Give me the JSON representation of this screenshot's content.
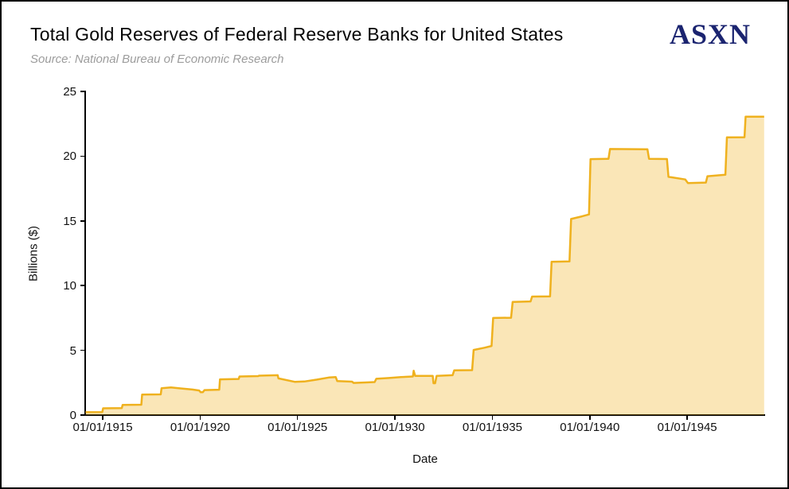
{
  "page": {
    "logo": "ASXN"
  },
  "colors": {
    "line": "#EFB11E",
    "fill": "rgba(239,177,30,0.32)",
    "logo": "#1B2470",
    "subtitle": "#9C9C9C",
    "axis": "#000000"
  },
  "chart_data": {
    "type": "area",
    "step": true,
    "title": "Total Gold Reserves of Federal Reserve Banks for United States",
    "subtitle": "Source: National Bureau of Economic Research",
    "xlabel": "Date",
    "ylabel": "Billions ($)",
    "xlim": [
      1914.1,
      1949.0
    ],
    "ylim": [
      0,
      25
    ],
    "grid": false,
    "legend": "none",
    "x_ticks": [
      {
        "year": 1915,
        "label": "01/01/1915"
      },
      {
        "year": 1920,
        "label": "01/01/1920"
      },
      {
        "year": 1925,
        "label": "01/01/1925"
      },
      {
        "year": 1930,
        "label": "01/01/1930"
      },
      {
        "year": 1935,
        "label": "01/01/1935"
      },
      {
        "year": 1940,
        "label": "01/01/1940"
      },
      {
        "year": 1945,
        "label": "01/01/1945"
      }
    ],
    "y_ticks": [
      {
        "value": 0,
        "label": "0"
      },
      {
        "value": 5,
        "label": "5"
      },
      {
        "value": 10,
        "label": "10"
      },
      {
        "value": 15,
        "label": "15"
      },
      {
        "value": 20,
        "label": "20"
      },
      {
        "value": 25,
        "label": "25"
      }
    ],
    "series": [
      {
        "name": "Total Gold Reserves of Federal Reserve Banks, United States, billions of dollars",
        "points": [
          [
            1914.12,
            0.22
          ],
          [
            1914.98,
            0.23
          ],
          [
            1915.02,
            0.52
          ],
          [
            1915.98,
            0.54
          ],
          [
            1916.02,
            0.78
          ],
          [
            1916.98,
            0.8
          ],
          [
            1917.02,
            1.58
          ],
          [
            1917.98,
            1.6
          ],
          [
            1918.02,
            2.07
          ],
          [
            1918.5,
            2.13
          ],
          [
            1919.0,
            2.06
          ],
          [
            1919.6,
            1.97
          ],
          [
            1919.95,
            1.9
          ],
          [
            1920.02,
            1.77
          ],
          [
            1920.14,
            1.77
          ],
          [
            1920.22,
            1.93
          ],
          [
            1920.98,
            1.96
          ],
          [
            1921.02,
            2.76
          ],
          [
            1921.98,
            2.79
          ],
          [
            1922.02,
            2.98
          ],
          [
            1922.98,
            3.01
          ],
          [
            1923.02,
            3.04
          ],
          [
            1923.98,
            3.08
          ],
          [
            1924.02,
            2.83
          ],
          [
            1924.85,
            2.57
          ],
          [
            1925.35,
            2.59
          ],
          [
            1926.0,
            2.74
          ],
          [
            1926.6,
            2.9
          ],
          [
            1926.96,
            2.93
          ],
          [
            1927.04,
            2.62
          ],
          [
            1927.8,
            2.58
          ],
          [
            1927.88,
            2.48
          ],
          [
            1928.5,
            2.52
          ],
          [
            1928.96,
            2.55
          ],
          [
            1929.04,
            2.8
          ],
          [
            1929.7,
            2.86
          ],
          [
            1930.3,
            2.93
          ],
          [
            1930.92,
            2.98
          ],
          [
            1930.96,
            3.42
          ],
          [
            1931.04,
            3.02
          ],
          [
            1931.94,
            3.02
          ],
          [
            1931.98,
            2.46
          ],
          [
            1932.06,
            2.46
          ],
          [
            1932.14,
            3.02
          ],
          [
            1932.96,
            3.08
          ],
          [
            1933.04,
            3.45
          ],
          [
            1933.96,
            3.47
          ],
          [
            1934.04,
            5.03
          ],
          [
            1934.6,
            5.2
          ],
          [
            1934.96,
            5.34
          ],
          [
            1935.04,
            7.5
          ],
          [
            1935.96,
            7.52
          ],
          [
            1936.04,
            8.74
          ],
          [
            1936.96,
            8.78
          ],
          [
            1937.04,
            9.15
          ],
          [
            1937.96,
            9.17
          ],
          [
            1938.04,
            11.84
          ],
          [
            1938.96,
            11.87
          ],
          [
            1939.04,
            15.15
          ],
          [
            1939.6,
            15.35
          ],
          [
            1939.96,
            15.5
          ],
          [
            1940.04,
            19.77
          ],
          [
            1940.96,
            19.8
          ],
          [
            1941.04,
            20.55
          ],
          [
            1942.96,
            20.53
          ],
          [
            1943.04,
            19.8
          ],
          [
            1943.96,
            19.78
          ],
          [
            1944.04,
            18.4
          ],
          [
            1944.9,
            18.2
          ],
          [
            1945.04,
            17.92
          ],
          [
            1945.96,
            17.96
          ],
          [
            1946.04,
            18.45
          ],
          [
            1946.96,
            18.56
          ],
          [
            1947.04,
            21.45
          ],
          [
            1947.94,
            21.46
          ],
          [
            1948.0,
            23.05
          ],
          [
            1948.95,
            23.05
          ]
        ]
      }
    ]
  }
}
